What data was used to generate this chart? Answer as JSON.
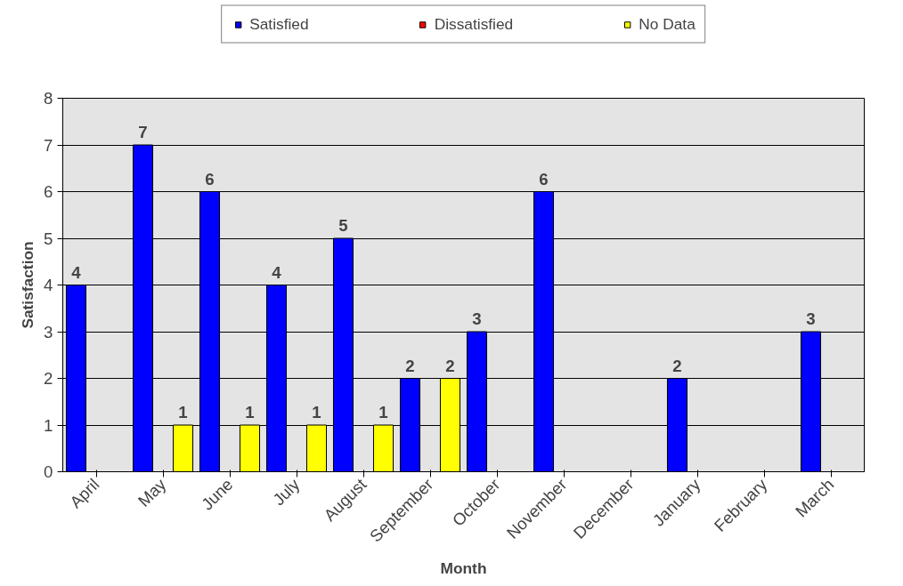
{
  "chart_data": {
    "type": "bar",
    "xlabel": "Month",
    "ylabel": "Satisfaction",
    "categories": [
      "April",
      "May",
      "June",
      "July",
      "August",
      "September",
      "October",
      "November",
      "December",
      "January",
      "February",
      "March"
    ],
    "series": [
      {
        "name": "Satisfied",
        "color": "#0000ff",
        "values": [
          4,
          7,
          6,
          4,
          5,
          2,
          3,
          6,
          null,
          2,
          null,
          3
        ]
      },
      {
        "name": "Dissatisfied",
        "color": "#ff0000",
        "values": [
          null,
          null,
          null,
          null,
          null,
          null,
          null,
          null,
          null,
          null,
          null,
          null
        ]
      },
      {
        "name": "No Data",
        "color": "#ffff00",
        "values": [
          null,
          1,
          1,
          1,
          1,
          2,
          null,
          null,
          null,
          null,
          null,
          null
        ]
      }
    ],
    "ylim": [
      0,
      8
    ],
    "yticks": [
      0,
      1,
      2,
      3,
      4,
      5,
      6,
      7,
      8
    ],
    "grid": "y",
    "legend": "top",
    "data_labels": true
  }
}
